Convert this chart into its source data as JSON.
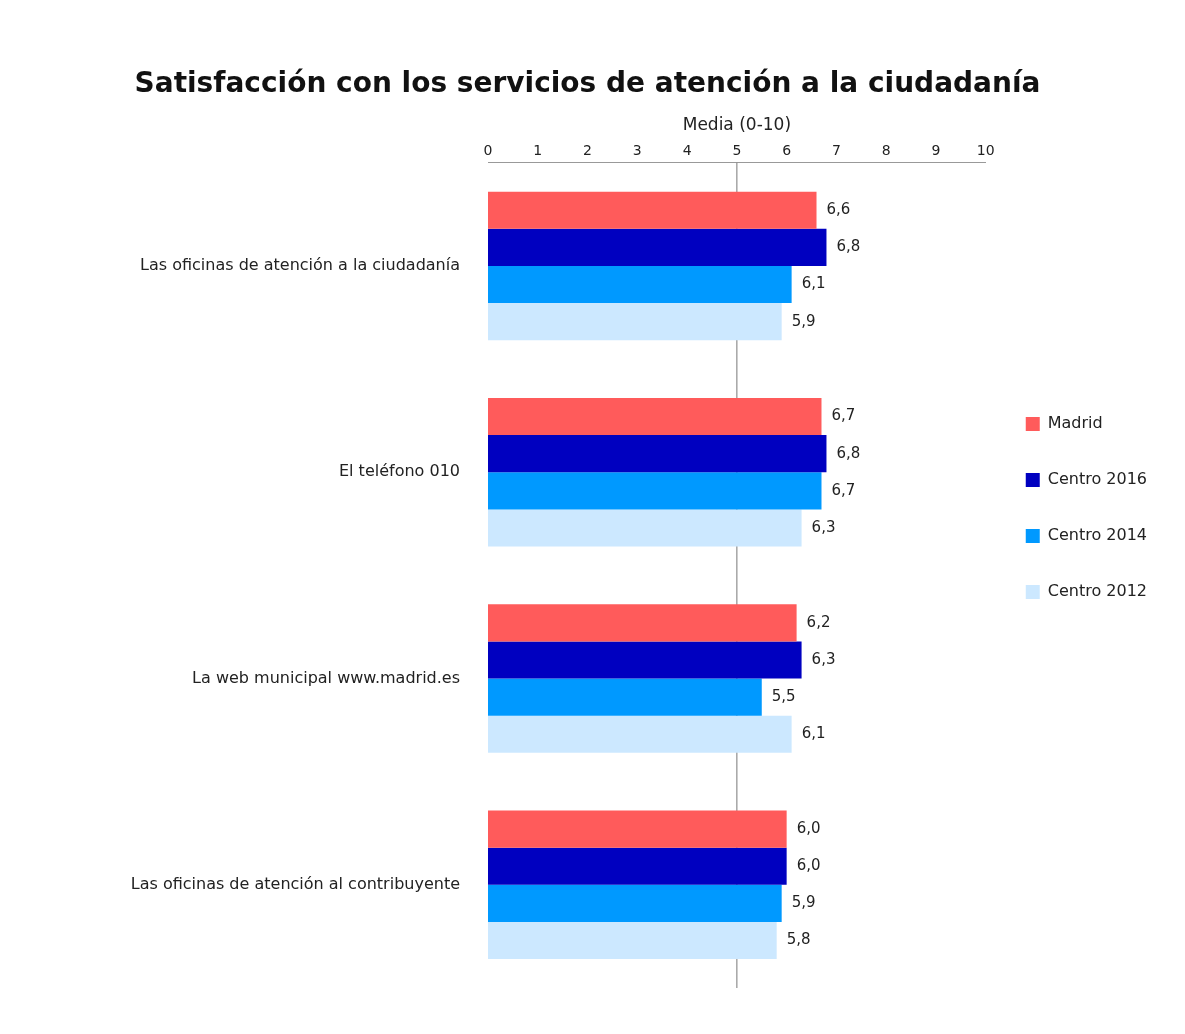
{
  "chart_data": {
    "type": "bar",
    "orientation": "horizontal",
    "title": "Satisfacción con los servicios de atención a la ciudadanía",
    "xlabel": "Media (0-10)",
    "categories": [
      "Las oficinas de atención a la ciudadanía",
      "El teléfono 010",
      "La web municipal www.madrid.es",
      "Las oficinas de atención al contribuyente"
    ],
    "series": [
      {
        "name": "Madrid",
        "color": "#ff5b5b",
        "values": [
          6.6,
          6.7,
          6.2,
          6.0
        ],
        "value_labels": [
          "6,6",
          "6,7",
          "6,2",
          "6,0"
        ]
      },
      {
        "name": "Centro 2016",
        "color": "#0000c0",
        "values": [
          6.8,
          6.8,
          6.3,
          6.0
        ],
        "value_labels": [
          "6,8",
          "6,8",
          "6,3",
          "6,0"
        ]
      },
      {
        "name": "Centro 2014",
        "color": "#0099ff",
        "values": [
          6.1,
          6.7,
          5.5,
          5.9
        ],
        "value_labels": [
          "6,1",
          "6,7",
          "5,5",
          "5,9"
        ]
      },
      {
        "name": "Centro 2012",
        "color": "#cce8ff",
        "values": [
          5.9,
          6.3,
          6.1,
          5.8
        ],
        "value_labels": [
          "5,9",
          "6,3",
          "6,1",
          "5,8"
        ]
      }
    ],
    "xlim": [
      0,
      10
    ],
    "xticks": [
      0,
      1,
      2,
      3,
      4,
      5,
      6,
      7,
      8,
      9,
      10
    ],
    "ref_lines": [
      {
        "axis": "x",
        "value": 5
      }
    ],
    "grid": false,
    "legend": "right"
  }
}
